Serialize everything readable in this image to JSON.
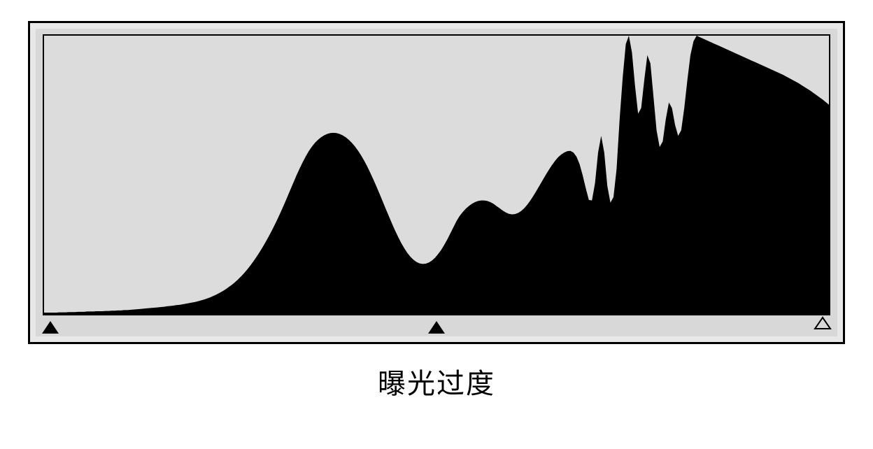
{
  "caption": "曝光过度",
  "histogram": {
    "type": "histogram",
    "background_color": "#dcdcdc",
    "frame_background": "#e8e8e8",
    "border_color": "#000000",
    "fill_color": "#000000",
    "xlim": [
      0,
      255
    ],
    "ylim": [
      0,
      100
    ],
    "values": [
      0.5,
      0.5,
      0.5,
      0.5,
      0.5,
      0.6,
      0.6,
      0.6,
      0.7,
      0.7,
      0.7,
      0.8,
      0.8,
      0.8,
      0.9,
      0.9,
      0.9,
      1.0,
      1.0,
      1.0,
      1.1,
      1.1,
      1.2,
      1.2,
      1.3,
      1.3,
      1.4,
      1.4,
      1.5,
      1.6,
      1.7,
      1.8,
      1.9,
      2.0,
      2.1,
      2.2,
      2.3,
      2.4,
      2.5,
      2.6,
      2.8,
      2.9,
      3.0,
      3.2,
      3.3,
      3.5,
      3.7,
      3.9,
      4.1,
      4.3,
      4.6,
      4.9,
      5.2,
      5.6,
      6.0,
      6.5,
      7.0,
      7.6,
      8.2,
      8.9,
      9.7,
      10.5,
      11.4,
      12.4,
      13.5,
      14.7,
      16.0,
      17.4,
      18.9,
      20.5,
      22.2,
      24.0,
      25.9,
      27.9,
      30.0,
      32.2,
      34.5,
      36.9,
      39.4,
      42.0,
      44.6,
      47.2,
      49.8,
      52.2,
      54.5,
      56.6,
      58.5,
      60.1,
      61.5,
      62.6,
      63.5,
      64.2,
      64.7,
      65.0,
      65.1,
      65.0,
      64.7,
      64.2,
      63.5,
      62.6,
      61.5,
      60.2,
      58.7,
      57.0,
      55.1,
      53.0,
      50.7,
      48.3,
      45.8,
      43.2,
      40.5,
      37.8,
      35.2,
      32.6,
      30.1,
      27.8,
      25.6,
      23.7,
      22.0,
      20.6,
      19.5,
      18.7,
      18.2,
      18.0,
      18.1,
      18.5,
      19.2,
      20.2,
      21.5,
      23.0,
      24.8,
      26.8,
      29.0,
      31.2,
      33.4,
      35.2,
      36.6,
      37.8,
      38.8,
      39.6,
      40.2,
      40.6,
      40.8,
      40.8,
      40.6,
      40.2,
      39.6,
      38.8,
      38.0,
      37.2,
      36.5,
      36.0,
      35.8,
      35.9,
      36.3,
      37.0,
      38.0,
      39.3,
      40.8,
      42.5,
      44.3,
      46.2,
      48.1,
      50.0,
      51.8,
      53.5,
      55.0,
      56.3,
      57.3,
      58.0,
      58.5,
      58.6,
      58.0,
      56.5,
      53.8,
      49.8,
      45.2,
      41.0,
      40.8,
      47.0,
      58.0,
      64.0,
      58.0,
      46.0,
      40.0,
      42.0,
      52.0,
      70.0,
      85.0,
      97.0,
      100.0,
      94.0,
      82.0,
      72.0,
      74.0,
      84.0,
      93.0,
      90.0,
      78.0,
      66.0,
      60.0,
      62.0,
      70.0,
      76.0,
      74.0,
      68.0,
      64.0,
      66.0,
      74.0,
      84.0,
      93.0,
      98.0,
      100.0,
      99.5,
      99.0,
      98.5,
      98.0,
      97.5,
      97.0,
      96.5,
      96.0,
      95.5,
      95.0,
      94.5,
      94.0,
      93.5,
      93.0,
      92.5,
      92.0,
      91.5,
      91.0,
      90.5,
      90.0,
      89.5,
      89.0,
      88.5,
      88.0,
      87.5,
      87.0,
      86.5,
      86.0,
      85.4,
      84.8,
      84.2,
      83.6,
      83.0,
      82.3,
      81.6,
      80.9,
      80.2,
      79.4,
      78.6,
      77.8,
      77.0,
      76.1,
      75.2
    ],
    "markers": [
      {
        "position": 0.01,
        "style": "filled"
      },
      {
        "position": 0.5,
        "style": "filled"
      },
      {
        "position": 0.99,
        "style": "hollow"
      }
    ],
    "marker_fill_color": "#000000",
    "marker_hollow_fill": "#d8d8d8",
    "marker_stroke": "#000000"
  }
}
